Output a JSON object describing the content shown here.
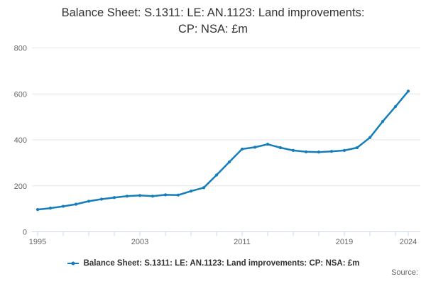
{
  "title": {
    "line1": "Balance Sheet: S.1311: LE: AN.1123: Land improvements:",
    "line2": "CP: NSA: £m"
  },
  "legend": {
    "label": "Balance Sheet: S.1311: LE: AN.1123: Land improvements: CP: NSA: £m"
  },
  "source": {
    "label": "Source:"
  },
  "colors": {
    "series": "#157dbc",
    "grid": "#e6e6e6",
    "axis": "#ccd6eb",
    "labels": "#666666",
    "title": "#333333"
  },
  "chart_data": {
    "type": "line",
    "title": "Balance Sheet: S.1311: LE: AN.1123: Land improvements: CP: NSA: £m",
    "xlabel": "",
    "ylabel": "",
    "ylim": [
      0,
      800
    ],
    "y_ticks": [
      0,
      200,
      400,
      600,
      800
    ],
    "x_labeled_ticks": [
      1995,
      2003,
      2011,
      2019,
      2024
    ],
    "x_minor_tick_years": [
      1995,
      1997,
      1999,
      2001,
      2003,
      2005,
      2007,
      2009,
      2011,
      2013,
      2015,
      2017,
      2019,
      2021,
      2023,
      2024
    ],
    "grid": "horizontal",
    "legend_position": "bottom",
    "x": [
      1995,
      1996,
      1997,
      1998,
      1999,
      2000,
      2001,
      2002,
      2003,
      2004,
      2005,
      2006,
      2007,
      2008,
      2009,
      2010,
      2011,
      2012,
      2013,
      2014,
      2015,
      2016,
      2017,
      2018,
      2019,
      2020,
      2021,
      2022,
      2023,
      2024
    ],
    "series": [
      {
        "name": "Balance Sheet: S.1311: LE: AN.1123: Land improvements: CP: NSA: £m",
        "values": [
          97,
          103,
          111,
          120,
          133,
          142,
          149,
          155,
          158,
          155,
          161,
          160,
          177,
          192,
          247,
          304,
          360,
          368,
          381,
          366,
          354,
          348,
          347,
          350,
          354,
          366,
          410,
          480,
          545,
          612
        ]
      }
    ]
  }
}
